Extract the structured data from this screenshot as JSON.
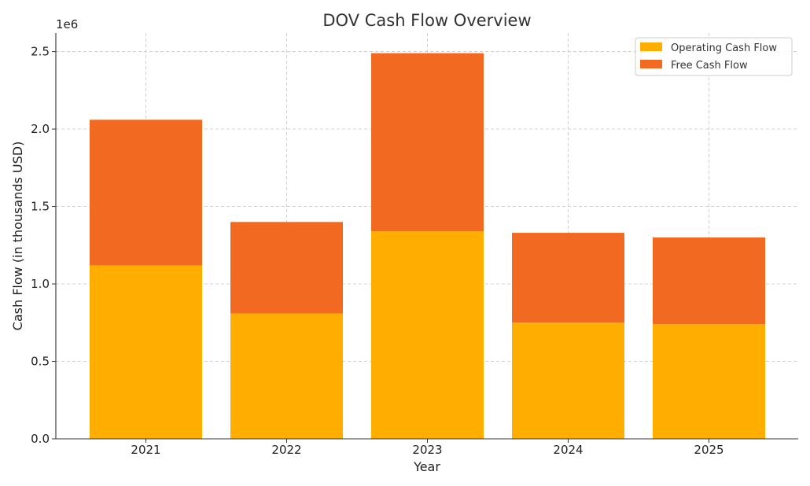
{
  "chart_data": {
    "type": "bar",
    "stacked": true,
    "title": "DOV Cash Flow Overview",
    "xlabel": "Year",
    "ylabel": "Cash Flow (in thousands USD)",
    "y_offset_text": "1e6",
    "categories": [
      "2021",
      "2022",
      "2023",
      "2024",
      "2025"
    ],
    "ylim": [
      0,
      2.62
    ],
    "yticks": [
      0.0,
      0.5,
      1.0,
      1.5,
      2.0,
      2.5
    ],
    "ytick_labels": [
      "0.0",
      "0.5",
      "1.0",
      "1.5",
      "2.0",
      "2.5"
    ],
    "y_unit_multiplier": 1000000,
    "grid": true,
    "legend_position": "top-right",
    "series": [
      {
        "name": "Operating Cash Flow",
        "color": "#FFAE00",
        "values": [
          1.12,
          0.81,
          1.34,
          0.75,
          0.74
        ]
      },
      {
        "name": "Free Cash Flow",
        "color": "#F26A21",
        "values": [
          0.94,
          0.59,
          1.15,
          0.58,
          0.56
        ]
      }
    ]
  }
}
